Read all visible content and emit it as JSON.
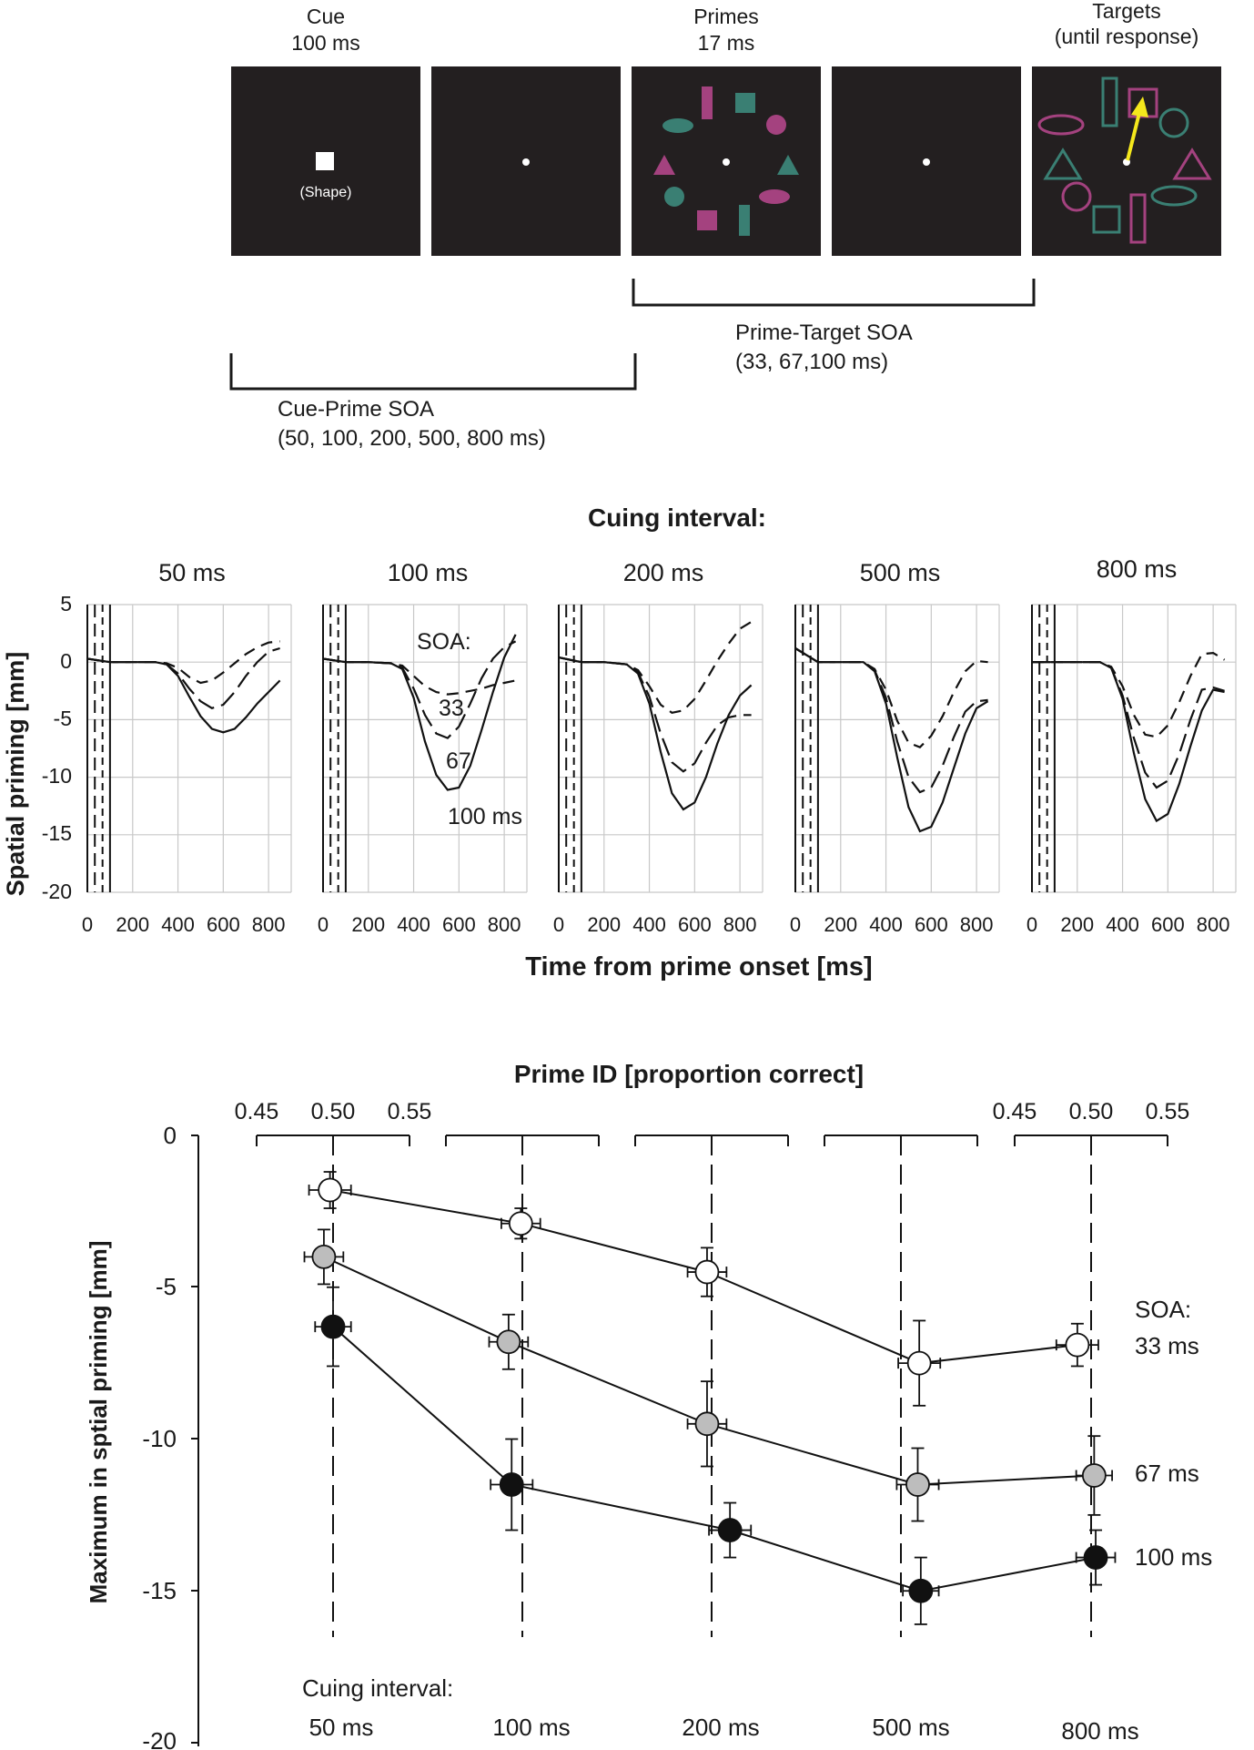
{
  "panel_a": {
    "frames": [
      {
        "title_line1": "Cue",
        "title_line2": "100 ms",
        "content": "cue",
        "shape_label": "(Shape)"
      },
      {
        "title_line1": "",
        "title_line2": "",
        "content": "fixation"
      },
      {
        "title_line1": "Primes",
        "title_line2": "17 ms",
        "content": "primes"
      },
      {
        "title_line1": "",
        "title_line2": "",
        "content": "fixation"
      },
      {
        "title_line1": "Targets",
        "title_line2": "(until response)",
        "content": "targets"
      }
    ],
    "prime_target_soa": {
      "line1": "Prime-Target SOA",
      "line2": "(33, 67,100 ms)"
    },
    "cue_prime_soa": {
      "line1": "Cue-Prime SOA",
      "line2": "(50, 100, 200, 500, 800 ms)"
    },
    "colors": {
      "frame": "#231f20",
      "magenta": "#a4427f",
      "teal": "#3a7f73",
      "arrow": "#f5e81c",
      "fixation": "#ffffff"
    }
  },
  "panel_b": {
    "title": "Cuing interval:",
    "x_label": "Time from prime onset [ms]",
    "y_label": "Spatial priming [mm]",
    "soa_label": "SOA:",
    "curve_labels": [
      "33",
      "67",
      "100 ms"
    ],
    "x_ticks": [
      "0",
      "200",
      "400",
      "600",
      "800"
    ],
    "y_ticks": [
      "5",
      "0",
      "-5",
      "-10",
      "-15",
      "-20"
    ]
  },
  "panel_c": {
    "top_label": "Prime ID [proportion correct]",
    "pid_ticks_left": [
      "0.45",
      "0.50",
      "0.55"
    ],
    "pid_ticks_right": [
      "0.45",
      "0.50",
      "0.55"
    ],
    "y_label": "Maximum in sptial priming [mm]",
    "y_ticks": [
      "0",
      "-5",
      "-10",
      "-15",
      "-20"
    ],
    "cuing_label": "Cuing interval:",
    "cuing_values": [
      "50 ms",
      "100 ms",
      "200 ms",
      "500 ms",
      "800 ms"
    ],
    "soa_header": "SOA:",
    "series_labels": [
      "33 ms",
      "67 ms",
      "100 ms"
    ]
  },
  "chart_data": [
    {
      "type": "line",
      "title": "Cuing interval:",
      "xlabel": "Time from prime onset [ms]",
      "ylabel": "Spatial priming [mm]",
      "xlim": [
        0,
        900
      ],
      "ylim": [
        -20,
        5
      ],
      "reference_lines_ms": [
        33,
        67,
        100
      ],
      "x": [
        0,
        100,
        200,
        300,
        350,
        400,
        450,
        500,
        550,
        600,
        650,
        700,
        750,
        800,
        850
      ],
      "panels": [
        {
          "title": "50 ms",
          "series": [
            {
              "name": "33 ms",
              "values": [
                0.3,
                0,
                0,
                0,
                -0.1,
                -0.5,
                -1.3,
                -1.8,
                -1.6,
                -0.9,
                -0.1,
                0.7,
                1.3,
                1.7,
                1.8
              ]
            },
            {
              "name": "67 ms",
              "values": [
                0.3,
                0,
                0,
                0,
                -0.2,
                -1.0,
                -2.3,
                -3.4,
                -4.0,
                -3.7,
                -2.6,
                -1.2,
                0.0,
                0.9,
                1.2
              ]
            },
            {
              "name": "100 ms",
              "values": [
                0.3,
                0,
                0,
                0,
                -0.2,
                -1.2,
                -3.0,
                -4.7,
                -5.8,
                -6.1,
                -5.8,
                -4.8,
                -3.6,
                -2.6,
                -1.6
              ]
            }
          ]
        },
        {
          "title": "100 ms",
          "series": [
            {
              "name": "33 ms",
              "values": [
                0.3,
                0,
                0,
                -0.1,
                -0.3,
                -1.2,
                -2.1,
                -2.6,
                -2.8,
                -2.7,
                -2.5,
                -2.3,
                -2.0,
                -1.8,
                -1.6
              ]
            },
            {
              "name": "67 ms",
              "values": [
                0.3,
                0,
                0,
                -0.1,
                -0.5,
                -2.3,
                -4.6,
                -6.2,
                -6.6,
                -5.6,
                -3.6,
                -1.4,
                0.3,
                1.3,
                1.8
              ]
            },
            {
              "name": "100 ms",
              "values": [
                0.3,
                0,
                0,
                -0.1,
                -0.6,
                -3.1,
                -6.9,
                -9.8,
                -11.1,
                -10.9,
                -9.0,
                -5.9,
                -2.6,
                0.4,
                2.4
              ]
            }
          ]
        },
        {
          "title": "200 ms",
          "series": [
            {
              "name": "33 ms",
              "values": [
                0.4,
                0,
                0,
                -0.2,
                -0.7,
                -2.1,
                -3.7,
                -4.4,
                -4.2,
                -3.2,
                -1.6,
                0.1,
                1.6,
                2.9,
                3.5
              ]
            },
            {
              "name": "67 ms",
              "values": [
                0.4,
                0,
                0,
                -0.2,
                -0.9,
                -3.0,
                -6.2,
                -8.7,
                -9.5,
                -8.8,
                -7.0,
                -5.5,
                -4.8,
                -4.6,
                -4.6
              ]
            },
            {
              "name": "100 ms",
              "values": [
                0.4,
                0,
                0,
                -0.2,
                -1.0,
                -3.6,
                -7.8,
                -11.4,
                -12.8,
                -12.2,
                -10.0,
                -7.1,
                -4.6,
                -2.9,
                -2.0
              ]
            }
          ]
        },
        {
          "title": "500 ms",
          "series": [
            {
              "name": "33 ms",
              "values": [
                1.2,
                0,
                0,
                0,
                -0.6,
                -2.4,
                -5.1,
                -7.0,
                -7.4,
                -6.4,
                -4.7,
                -2.6,
                -0.8,
                0.1,
                0.0
              ]
            },
            {
              "name": "67 ms",
              "values": [
                1.2,
                0,
                0,
                0,
                -0.7,
                -3.1,
                -6.9,
                -10.0,
                -11.3,
                -10.9,
                -9.0,
                -6.5,
                -4.3,
                -3.4,
                -3.3
              ]
            },
            {
              "name": "100 ms",
              "values": [
                1.2,
                0,
                0,
                0,
                -0.8,
                -3.6,
                -8.3,
                -12.6,
                -14.7,
                -14.3,
                -12.2,
                -9.2,
                -6.2,
                -4.0,
                -3.4
              ]
            }
          ]
        },
        {
          "title": "800 ms",
          "series": [
            {
              "name": "33 ms",
              "values": [
                0.0,
                0,
                0,
                0,
                -0.4,
                -2.1,
                -4.6,
                -6.3,
                -6.5,
                -5.5,
                -3.5,
                -1.2,
                0.7,
                0.8,
                0.2
              ]
            },
            {
              "name": "67 ms",
              "values": [
                0.0,
                0,
                0,
                0,
                -0.5,
                -2.9,
                -6.6,
                -9.6,
                -10.9,
                -10.3,
                -8.0,
                -5.0,
                -2.4,
                -2.2,
                -2.5
              ]
            },
            {
              "name": "100 ms",
              "values": [
                0.0,
                0,
                0,
                0,
                -0.5,
                -3.2,
                -7.9,
                -11.9,
                -13.8,
                -13.2,
                -10.6,
                -7.3,
                -4.2,
                -2.4,
                -2.6
              ]
            }
          ]
        }
      ]
    },
    {
      "type": "scatter",
      "title": "Prime ID [proportion correct]",
      "ylabel": "Maximum in sptial priming [mm]",
      "xlabel": "Cuing interval",
      "ylim": [
        -20,
        0
      ],
      "xlim_per_group": [
        0.45,
        0.55
      ],
      "categories": [
        "50 ms",
        "100 ms",
        "200 ms",
        "500 ms",
        "800 ms"
      ],
      "series": [
        {
          "name": "33 ms",
          "prime_id": [
            0.498,
            0.499,
            0.497,
            0.512,
            0.491
          ],
          "y": [
            -1.8,
            -2.9,
            -4.5,
            -7.5,
            -6.9
          ],
          "y_err": [
            0.6,
            0.5,
            0.8,
            1.4,
            0.7
          ],
          "x_err": [
            0.006,
            0.005,
            0.005,
            0.006,
            0.006
          ]
        },
        {
          "name": "67 ms",
          "prime_id": [
            0.494,
            0.491,
            0.497,
            0.511,
            0.502
          ],
          "y": [
            -4.0,
            -6.8,
            -9.5,
            -11.5,
            -11.2
          ],
          "y_err": [
            0.9,
            0.9,
            1.4,
            1.2,
            1.3
          ],
          "x_err": [
            0.005,
            0.005,
            0.005,
            0.006,
            0.004
          ]
        },
        {
          "name": "100 ms",
          "prime_id": [
            0.5,
            0.493,
            0.512,
            0.513,
            0.503
          ],
          "y": [
            -6.3,
            -11.5,
            -13.0,
            -15.0,
            -13.9
          ],
          "y_err": [
            1.3,
            1.5,
            0.9,
            1.1,
            0.9
          ],
          "x_err": [
            0.004,
            0.006,
            0.006,
            0.004,
            0.005
          ]
        }
      ]
    }
  ]
}
